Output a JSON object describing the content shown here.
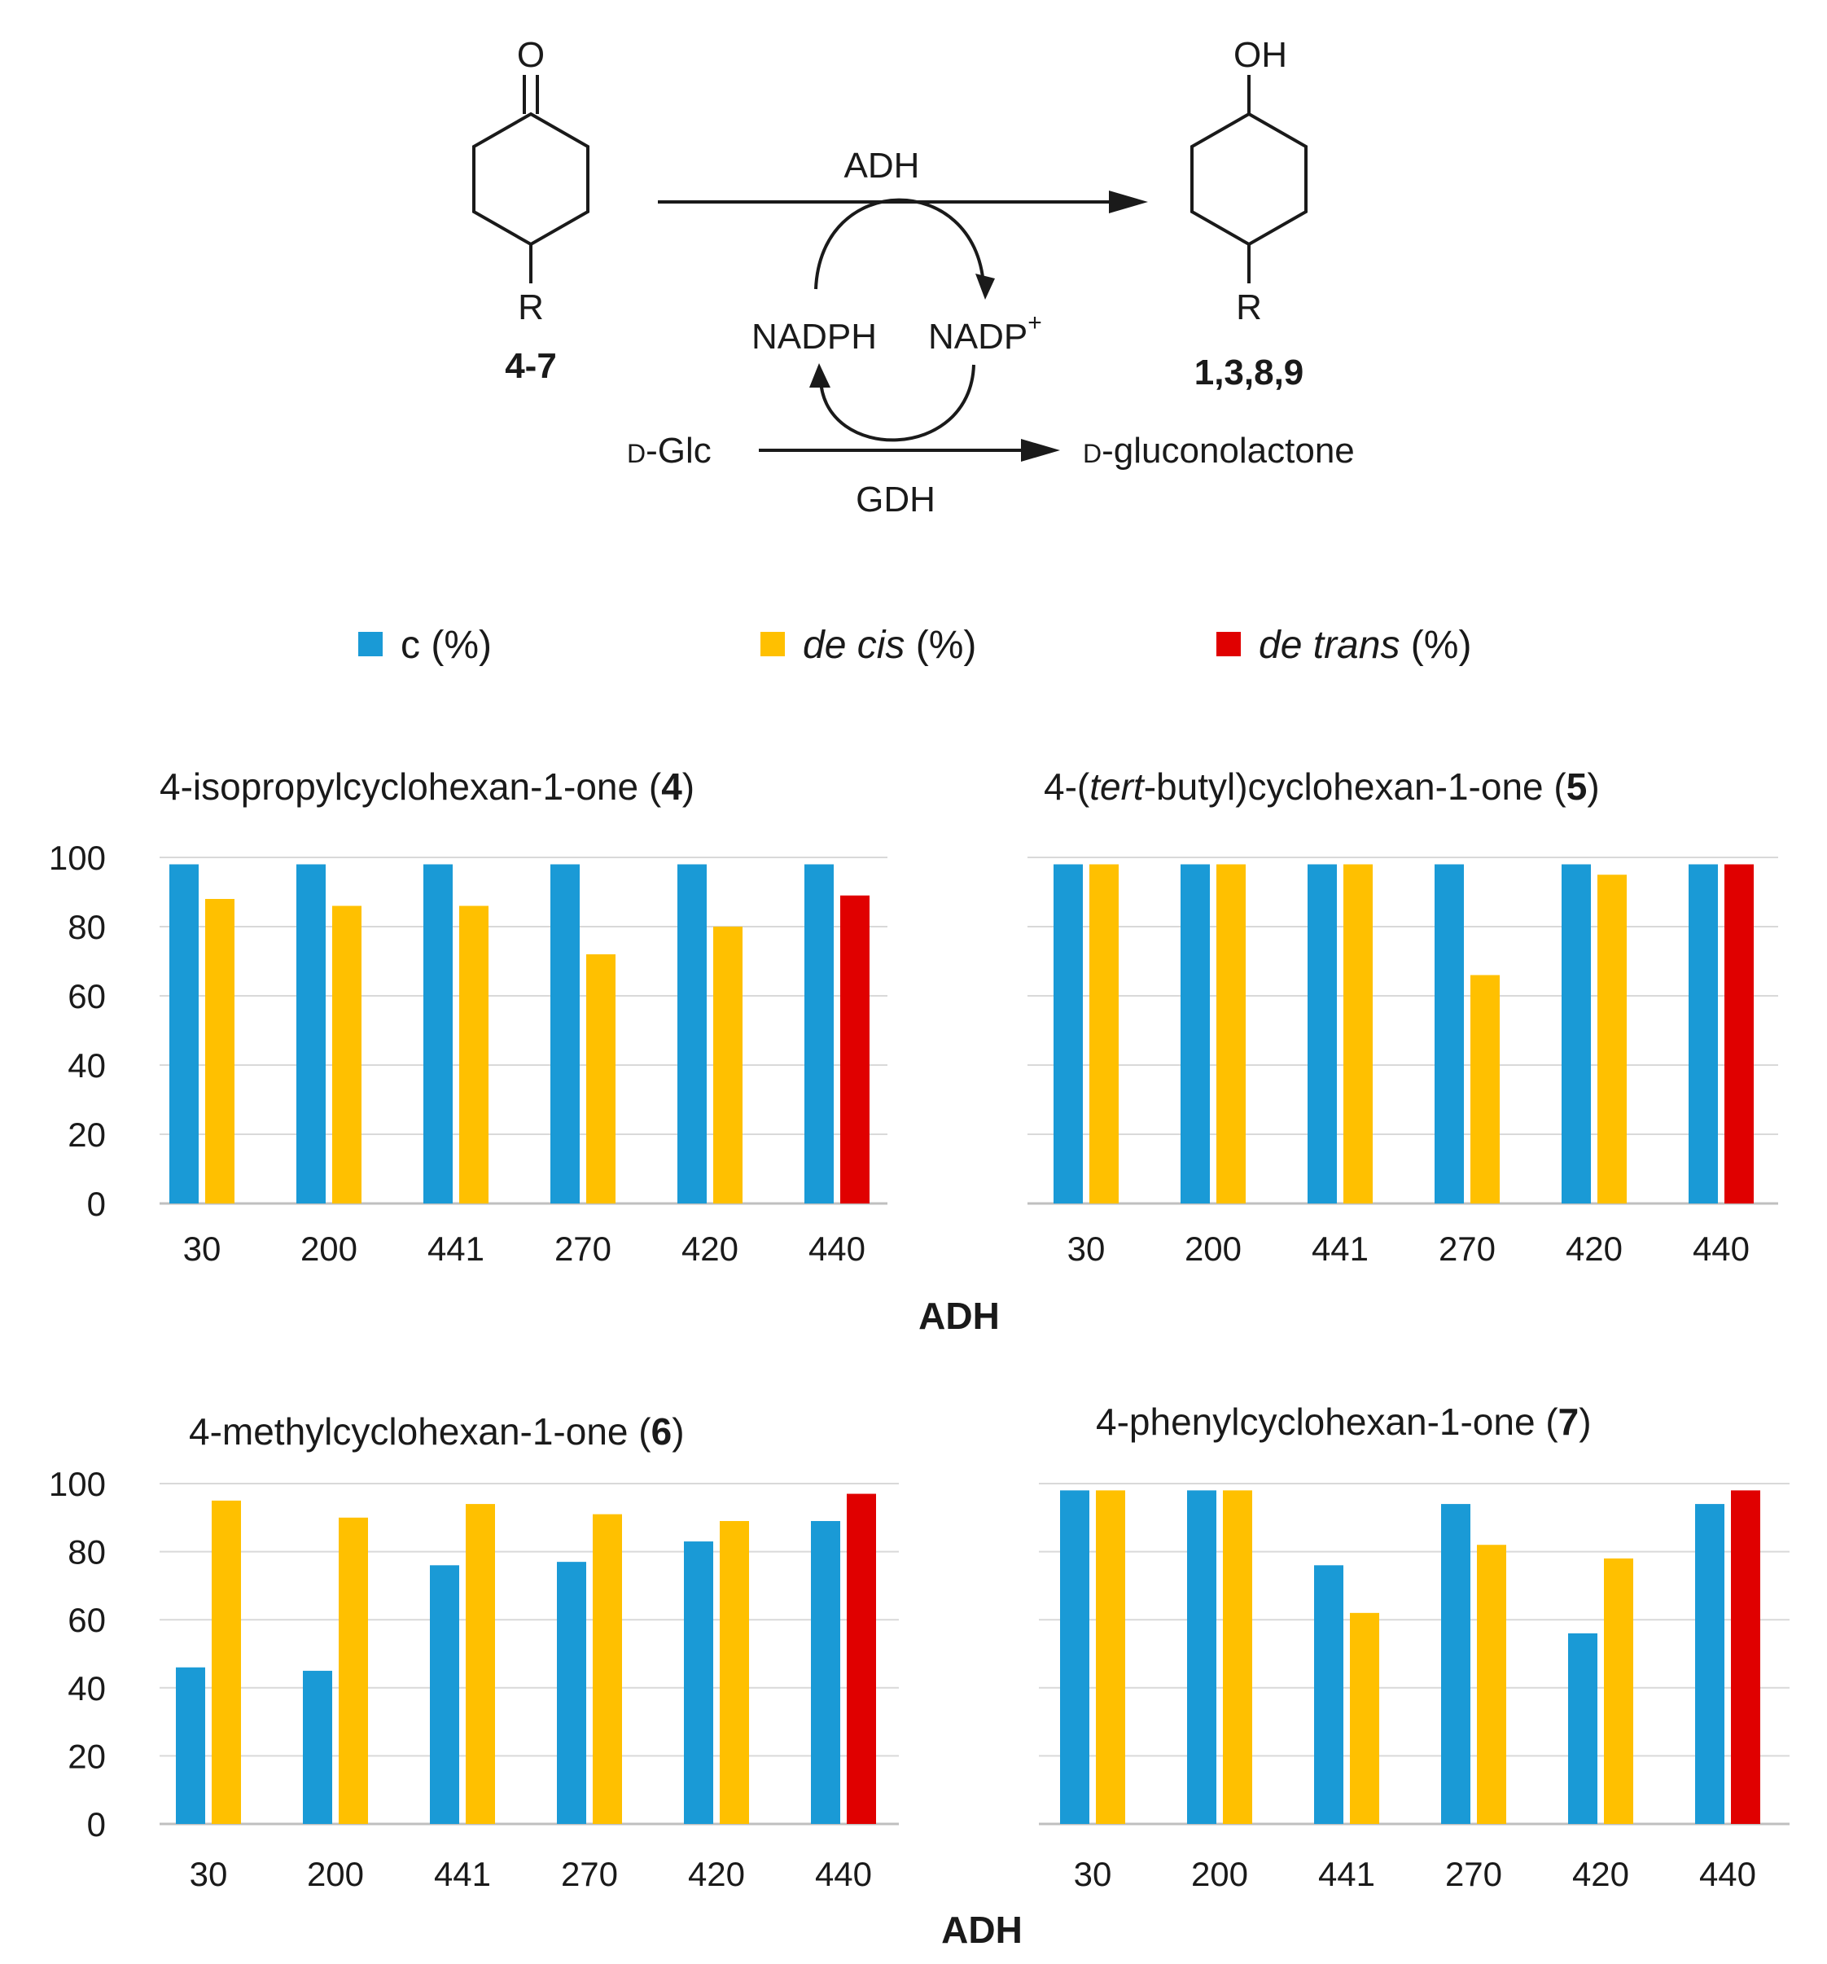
{
  "scheme": {
    "reactant": {
      "atom": "O",
      "substituent": "R",
      "label": "4-7"
    },
    "product": {
      "atom": "OH",
      "substituent": "R",
      "label": "1,3,8,9"
    },
    "enzyme_top": "ADH",
    "enzyme_bottom": "GDH",
    "cofactor_left": "NADPH",
    "cofactor_right": "NADP",
    "cofactor_right_sup": "+",
    "sugar_left_prefix": "D",
    "sugar_left": "-Glc",
    "sugar_right_prefix": "D",
    "sugar_right": "-gluconolactone"
  },
  "legend": {
    "items": [
      {
        "color": "#1a9ad6",
        "plain": "c",
        "italic": "",
        "suffix": " (%)"
      },
      {
        "color": "#ffc000",
        "plain": "",
        "italic": "de cis",
        "suffix": " (%)"
      },
      {
        "color": "#e00000",
        "plain": "",
        "italic": "de trans",
        "suffix": " (%)"
      }
    ]
  },
  "colors": {
    "c": "#1a9ad6",
    "de_cis": "#ffc000",
    "de_trans": "#e00000",
    "grid": "#d9d9d9"
  },
  "chart_data": [
    {
      "type": "bar",
      "title": {
        "pre": "4-isopropylcyclohexan-1-one (",
        "italic": "",
        "mid": "",
        "bold": "4",
        "post": ")"
      },
      "categories": [
        "30",
        "200",
        "441",
        "270",
        "420",
        "440"
      ],
      "series": [
        {
          "name": "c (%)",
          "values": [
            98,
            98,
            98,
            98,
            98,
            98
          ]
        },
        {
          "name": "de cis (%)",
          "values": [
            88,
            86,
            86,
            72,
            80,
            null
          ]
        },
        {
          "name": "de trans (%)",
          "values": [
            null,
            null,
            null,
            null,
            null,
            89
          ]
        }
      ],
      "ylim": [
        0,
        100
      ],
      "yticks": [
        0,
        20,
        40,
        60,
        80,
        100
      ],
      "xlabel": "ADH",
      "grid": true
    },
    {
      "type": "bar",
      "title": {
        "pre": "4-(",
        "italic": "tert",
        "mid": "-butyl)cyclohexan-1-one (",
        "bold": "5",
        "post": ")"
      },
      "categories": [
        "30",
        "200",
        "441",
        "270",
        "420",
        "440"
      ],
      "series": [
        {
          "name": "c (%)",
          "values": [
            98,
            98,
            98,
            98,
            98,
            98
          ]
        },
        {
          "name": "de cis (%)",
          "values": [
            98,
            98,
            98,
            66,
            95,
            null
          ]
        },
        {
          "name": "de trans (%)",
          "values": [
            null,
            null,
            null,
            null,
            null,
            98
          ]
        }
      ],
      "ylim": [
        0,
        100
      ],
      "yticks": [
        0,
        20,
        40,
        60,
        80,
        100
      ],
      "xlabel": "ADH",
      "grid": true
    },
    {
      "type": "bar",
      "title": {
        "pre": "4-methylcyclohexan-1-one (",
        "italic": "",
        "mid": "",
        "bold": "6",
        "post": ")"
      },
      "categories": [
        "30",
        "200",
        "441",
        "270",
        "420",
        "440"
      ],
      "series": [
        {
          "name": "c (%)",
          "values": [
            46,
            45,
            76,
            77,
            83,
            89
          ]
        },
        {
          "name": "de cis (%)",
          "values": [
            95,
            90,
            94,
            91,
            89,
            null
          ]
        },
        {
          "name": "de trans (%)",
          "values": [
            null,
            null,
            null,
            null,
            null,
            97
          ]
        }
      ],
      "ylim": [
        0,
        100
      ],
      "yticks": [
        0,
        20,
        40,
        60,
        80,
        100
      ],
      "xlabel": "ADH",
      "grid": true
    },
    {
      "type": "bar",
      "title": {
        "pre": "4-phenylcyclohexan-1-one (",
        "italic": "",
        "mid": "",
        "bold": "7",
        "post": ")"
      },
      "categories": [
        "30",
        "200",
        "441",
        "270",
        "420",
        "440"
      ],
      "series": [
        {
          "name": "c (%)",
          "values": [
            98,
            98,
            76,
            94,
            56,
            94
          ]
        },
        {
          "name": "de cis (%)",
          "values": [
            98,
            98,
            62,
            82,
            78,
            null
          ]
        },
        {
          "name": "de trans (%)",
          "values": [
            null,
            null,
            null,
            null,
            null,
            98
          ]
        }
      ],
      "ylim": [
        0,
        100
      ],
      "yticks": [
        0,
        20,
        40,
        60,
        80,
        100
      ],
      "xlabel": "ADH",
      "grid": true
    }
  ]
}
